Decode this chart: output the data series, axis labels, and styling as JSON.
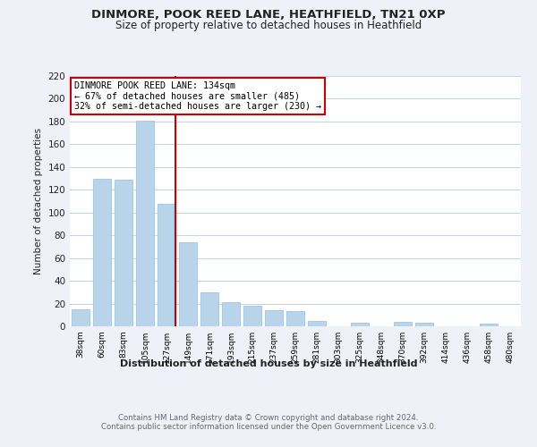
{
  "title": "DINMORE, POOK REED LANE, HEATHFIELD, TN21 0XP",
  "subtitle": "Size of property relative to detached houses in Heathfield",
  "xlabel": "Distribution of detached houses by size in Heathfield",
  "ylabel": "Number of detached properties",
  "bar_labels": [
    "38sqm",
    "60sqm",
    "83sqm",
    "105sqm",
    "127sqm",
    "149sqm",
    "171sqm",
    "193sqm",
    "215sqm",
    "237sqm",
    "259sqm",
    "281sqm",
    "303sqm",
    "325sqm",
    "348sqm",
    "370sqm",
    "392sqm",
    "414sqm",
    "436sqm",
    "458sqm",
    "480sqm"
  ],
  "bar_values": [
    15,
    130,
    129,
    181,
    108,
    74,
    30,
    21,
    18,
    14,
    13,
    5,
    0,
    3,
    0,
    4,
    3,
    0,
    0,
    2,
    0
  ],
  "bar_color": "#b8d4ea",
  "bar_edge_color": "#9bbbd8",
  "marker_index": 4,
  "marker_color": "#cc0000",
  "ylim": [
    0,
    220
  ],
  "yticks": [
    0,
    20,
    40,
    60,
    80,
    100,
    120,
    140,
    160,
    180,
    200,
    220
  ],
  "annotation_title": "DINMORE POOK REED LANE: 134sqm",
  "annotation_line1": "← 67% of detached houses are smaller (485)",
  "annotation_line2": "32% of semi-detached houses are larger (230) →",
  "footer_line1": "Contains HM Land Registry data © Crown copyright and database right 2024.",
  "footer_line2": "Contains public sector information licensed under the Open Government Licence v3.0.",
  "bg_color": "#eef2f8",
  "plot_bg_color": "#ffffff",
  "grid_color": "#c5d5e5",
  "title_color": "#222222",
  "footer_color": "#666666"
}
